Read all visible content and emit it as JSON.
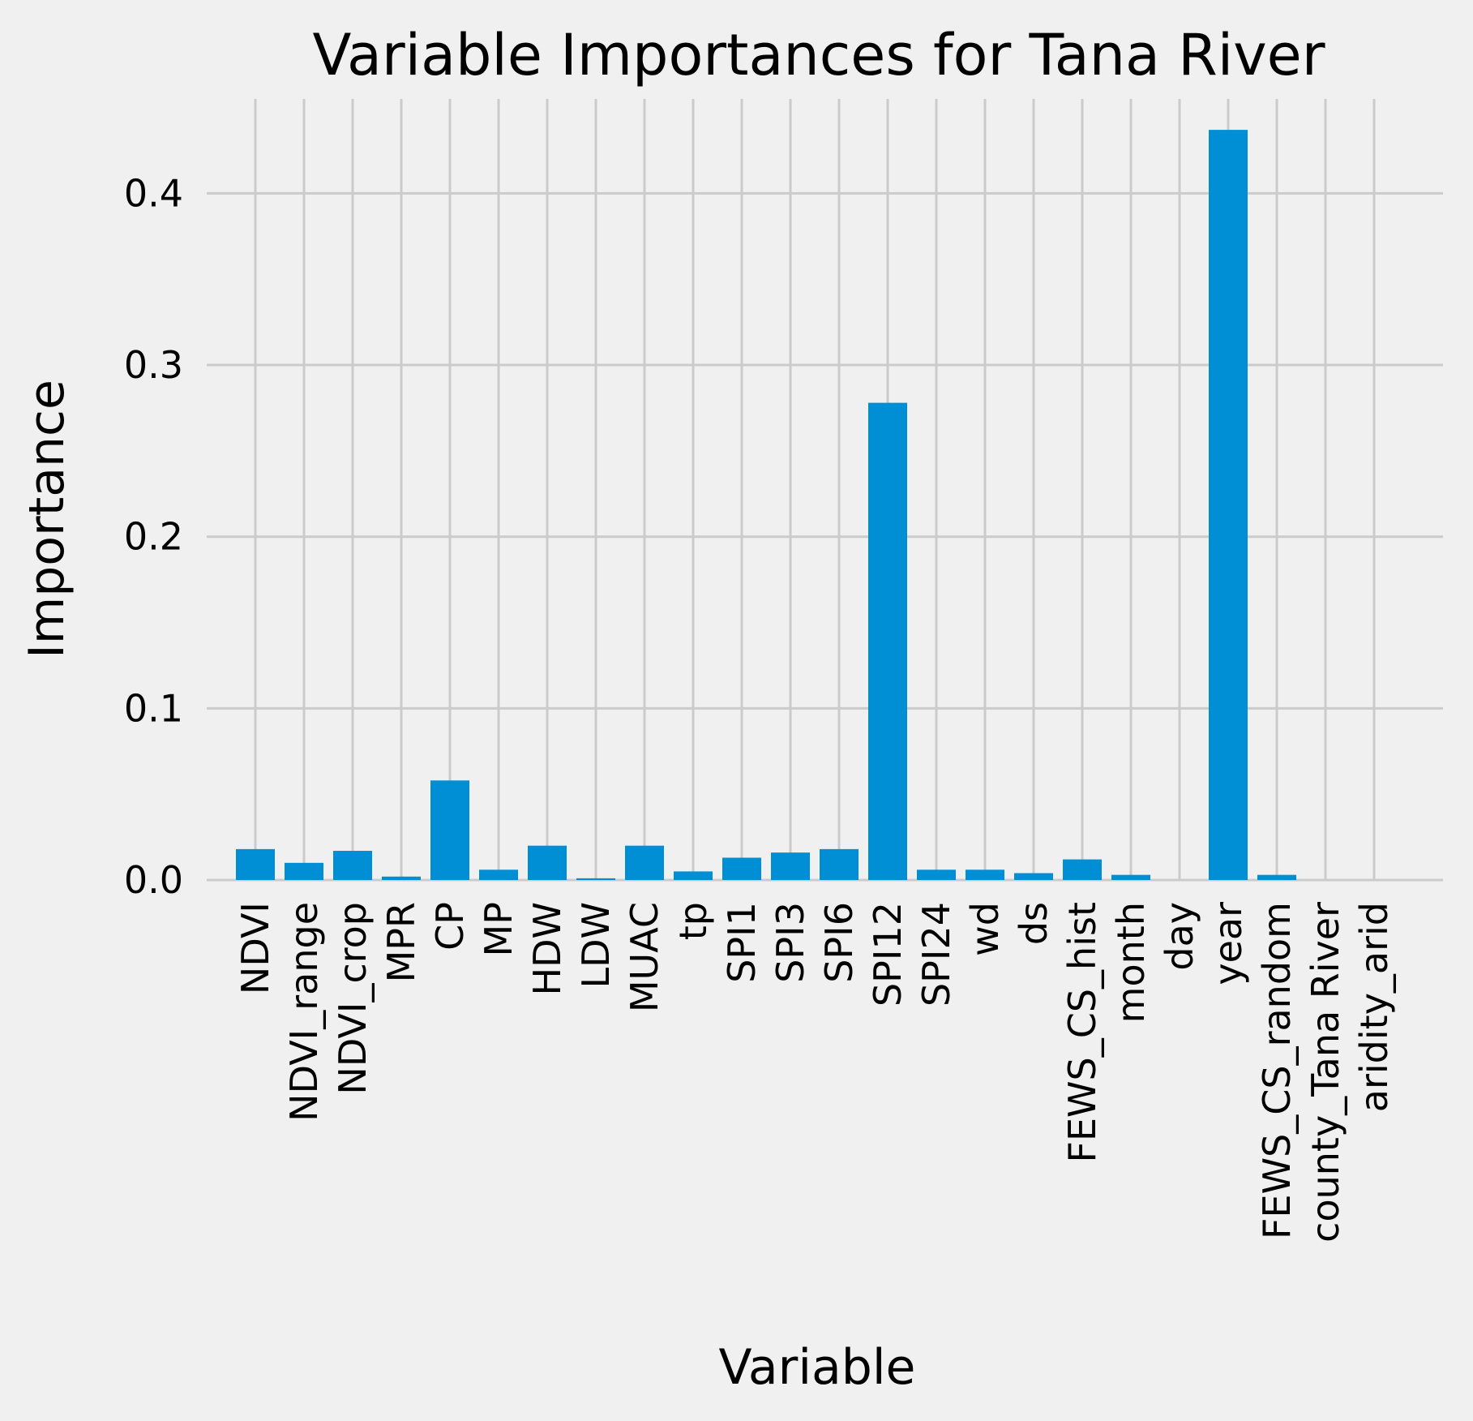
{
  "chart_data": {
    "type": "bar",
    "title": "Variable Importances for Tana River",
    "xlabel": "Variable",
    "ylabel": "Importance",
    "ylim": [
      0,
      0.455
    ],
    "yticks": [
      0.0,
      0.1,
      0.2,
      0.3,
      0.4
    ],
    "ytick_labels": [
      "0.0",
      "0.1",
      "0.2",
      "0.3",
      "0.4"
    ],
    "grid": true,
    "bar_color": "#008fd5",
    "background_color": "#f0f0f0",
    "grid_color": "#cbcbcb",
    "categories": [
      "NDVI",
      "NDVI_range",
      "NDVI_crop",
      "MPR",
      "CP",
      "MP",
      "HDW",
      "LDW",
      "MUAC",
      "tp",
      "SPI1",
      "SPI3",
      "SPI6",
      "SPI12",
      "SPI24",
      "wd",
      "ds",
      "FEWS_CS_hist",
      "month",
      "day",
      "year",
      "FEWS_CS_random",
      "county_Tana River",
      "aridity_arid"
    ],
    "values": [
      0.018,
      0.01,
      0.017,
      0.002,
      0.058,
      0.006,
      0.02,
      0.001,
      0.02,
      0.005,
      0.013,
      0.016,
      0.018,
      0.278,
      0.006,
      0.006,
      0.004,
      0.012,
      0.003,
      0.0,
      0.437,
      0.003,
      0.0,
      0.0
    ]
  }
}
